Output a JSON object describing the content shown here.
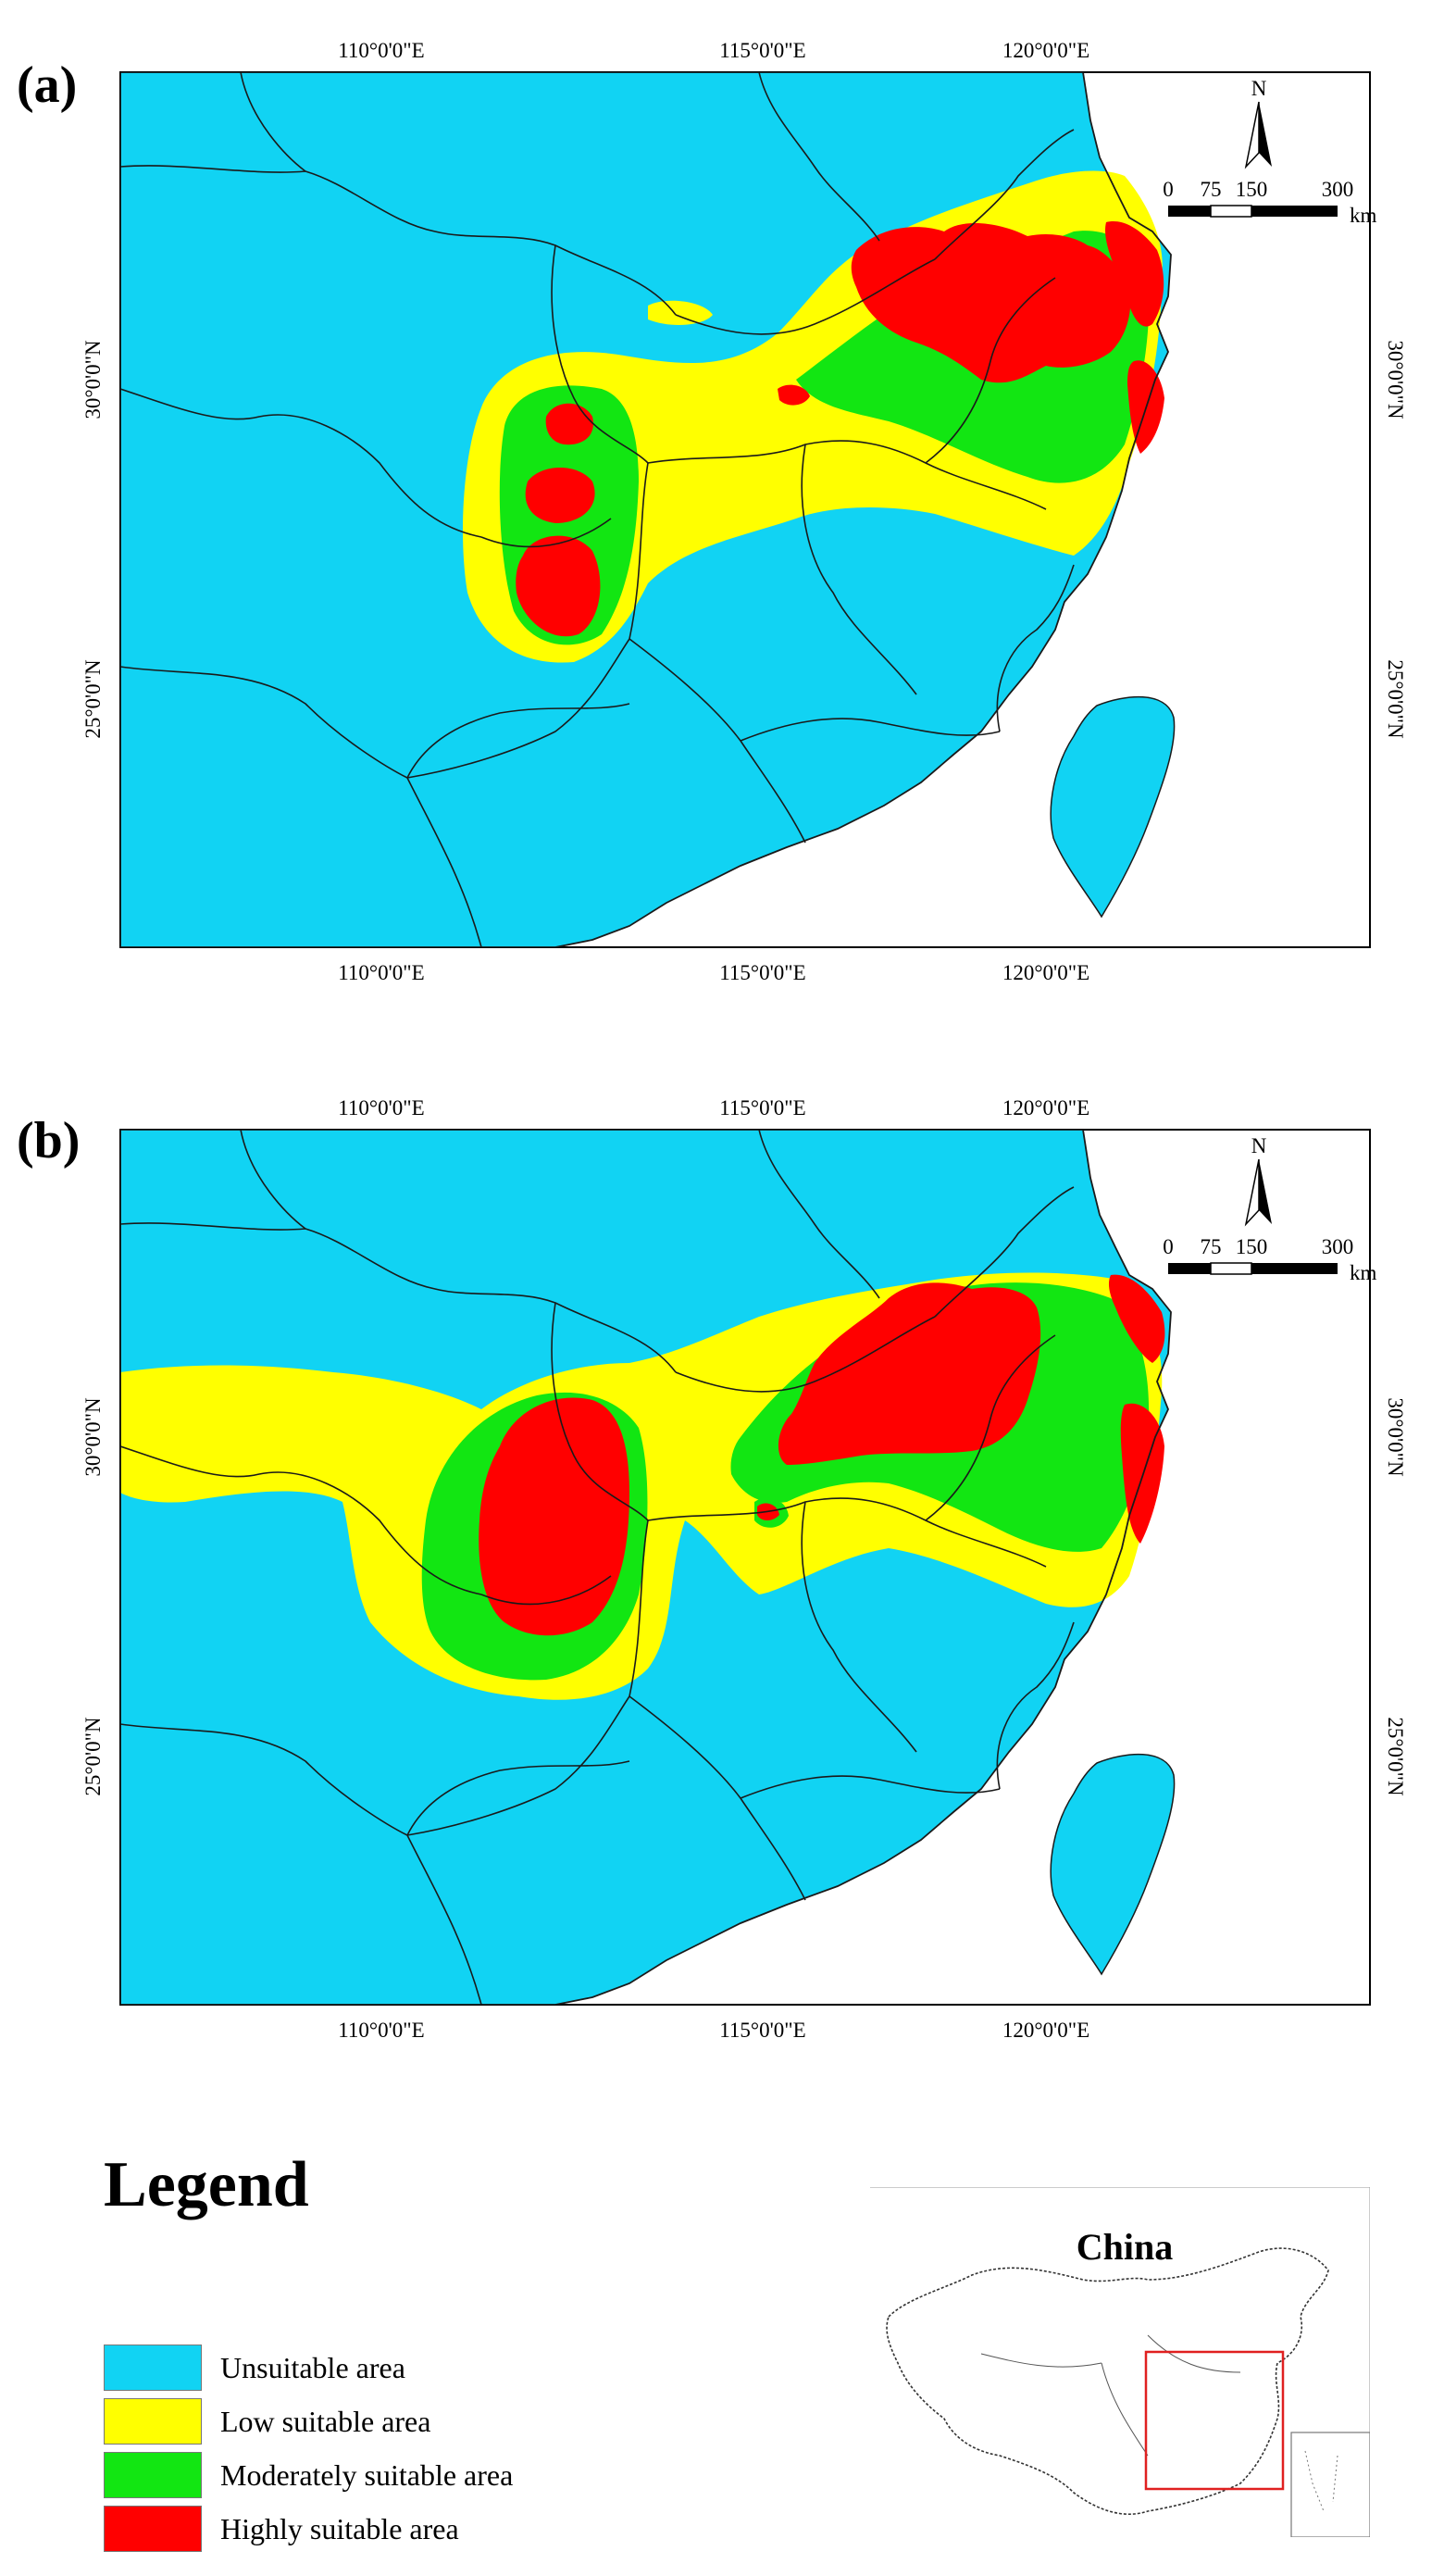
{
  "colors": {
    "unsuitable": "#11d3f3",
    "low": "#ffff00",
    "moderate": "#12e612",
    "high": "#ff0000",
    "border": "#1a1a1a"
  },
  "panels": [
    {
      "letter": "(a)",
      "lon_ticks": [
        "110°0'0\"E",
        "115°0'0\"E",
        "120°0'0\"E"
      ],
      "lat_ticks": [
        "30°0'0\"N",
        "25°0'0\"N"
      ]
    },
    {
      "letter": "(b)",
      "lon_ticks": [
        "110°0'0\"E",
        "115°0'0\"E",
        "120°0'0\"E"
      ],
      "lat_ticks": [
        "30°0'0\"N",
        "25°0'0\"N"
      ]
    }
  ],
  "scale_bar": {
    "labels": [
      "0",
      "75",
      "150",
      "300"
    ],
    "unit": "km"
  },
  "north_arrow": {
    "label": "N"
  },
  "legend": {
    "title": "Legend",
    "items": [
      {
        "label": "Unsuitable area",
        "color_key": "unsuitable"
      },
      {
        "label": "Low suitable area",
        "color_key": "low"
      },
      {
        "label": "Moderately suitable area",
        "color_key": "moderate"
      },
      {
        "label": "Highly suitable area",
        "color_key": "high"
      }
    ]
  },
  "inset": {
    "title": "China"
  }
}
